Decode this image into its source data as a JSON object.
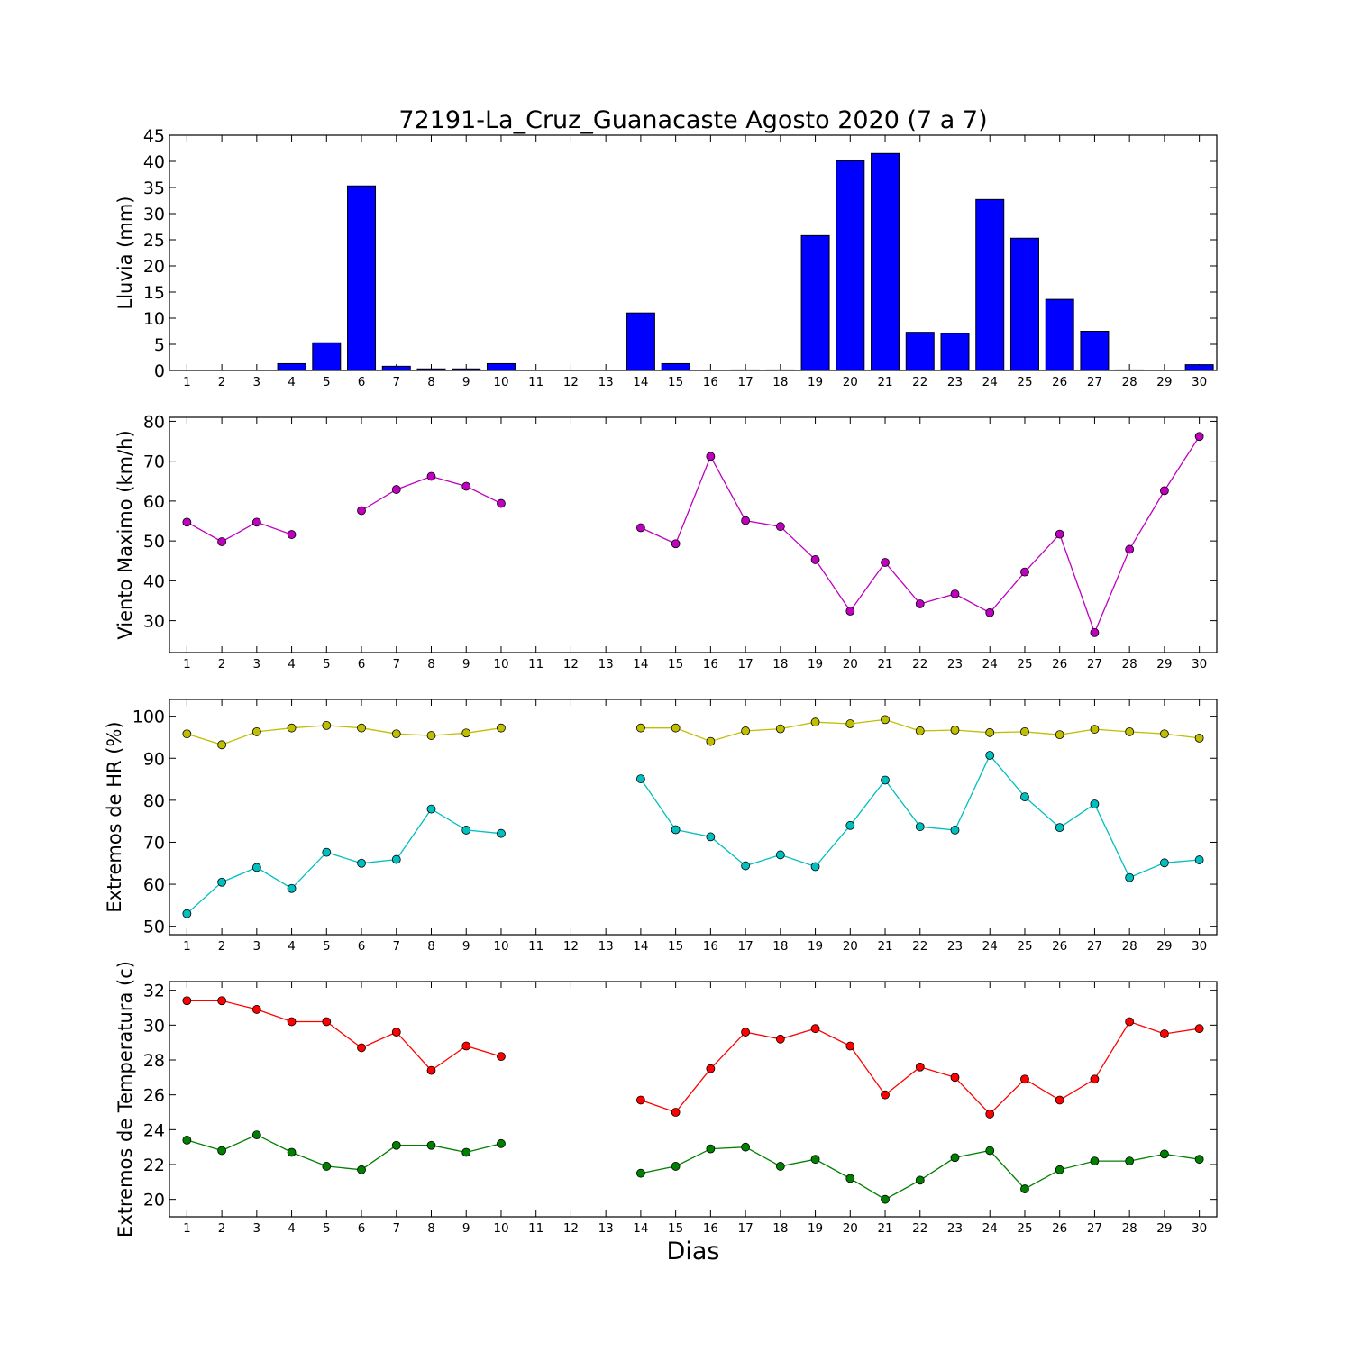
{
  "figure": {
    "title": "72191-La_Cruz_Guanacaste Agosto 2020  (7 a 7)",
    "xlabel": "Dias"
  },
  "chart_data": [
    {
      "type": "bar",
      "ylabel": "Lluvia (mm)",
      "ylim": [
        0,
        45
      ],
      "yticks": [
        0,
        5,
        10,
        15,
        20,
        25,
        30,
        35,
        40,
        45
      ],
      "x": [
        1,
        2,
        3,
        4,
        5,
        6,
        7,
        8,
        9,
        10,
        11,
        12,
        13,
        14,
        15,
        16,
        17,
        18,
        19,
        20,
        21,
        22,
        23,
        24,
        25,
        26,
        27,
        28,
        29,
        30
      ],
      "series": [
        {
          "color": "#0000ff",
          "values": [
            0,
            0,
            0,
            1.3,
            5.3,
            35.3,
            0.8,
            0.3,
            0.3,
            1.3,
            0,
            0,
            0,
            11.0,
            1.3,
            0,
            0.1,
            0.1,
            25.8,
            40.1,
            41.5,
            7.3,
            7.1,
            32.7,
            25.3,
            13.6,
            7.5,
            0.1,
            0,
            1.1
          ]
        }
      ]
    },
    {
      "type": "line",
      "ylabel": "Viento Maximo (km/h)",
      "ylim": [
        22,
        81
      ],
      "yticks": [
        30,
        40,
        50,
        60,
        70,
        80
      ],
      "x": [
        1,
        2,
        3,
        4,
        5,
        6,
        7,
        8,
        9,
        10,
        11,
        12,
        13,
        14,
        15,
        16,
        17,
        18,
        19,
        20,
        21,
        22,
        23,
        24,
        25,
        26,
        27,
        28,
        29,
        30
      ],
      "series": [
        {
          "color": "#bf00bf",
          "values": [
            54.7,
            49.8,
            54.7,
            51.6,
            null,
            57.6,
            62.9,
            66.2,
            63.7,
            59.4,
            null,
            null,
            null,
            53.3,
            49.3,
            71.2,
            55.1,
            53.6,
            45.3,
            32.4,
            44.6,
            34.2,
            36.7,
            32.0,
            42.2,
            51.7,
            27.0,
            47.9,
            62.6,
            76.2
          ]
        }
      ]
    },
    {
      "type": "line",
      "ylabel": "Extremos de HR (%)",
      "ylim": [
        48,
        104
      ],
      "yticks": [
        50,
        60,
        70,
        80,
        90,
        100
      ],
      "x": [
        1,
        2,
        3,
        4,
        5,
        6,
        7,
        8,
        9,
        10,
        11,
        12,
        13,
        14,
        15,
        16,
        17,
        18,
        19,
        20,
        21,
        22,
        23,
        24,
        25,
        26,
        27,
        28,
        29,
        30
      ],
      "series": [
        {
          "color": "#bfbf00",
          "values": [
            95.8,
            93.2,
            96.3,
            97.2,
            97.8,
            97.2,
            95.8,
            95.4,
            96.0,
            97.2,
            null,
            null,
            null,
            97.2,
            97.2,
            94.0,
            96.5,
            97.0,
            98.6,
            98.2,
            99.2,
            96.5,
            96.7,
            96.1,
            96.3,
            95.6,
            96.9,
            96.3,
            95.8,
            94.8
          ]
        },
        {
          "color": "#00bfbf",
          "values": [
            53.0,
            60.5,
            64.0,
            59.0,
            67.6,
            65.0,
            65.9,
            77.9,
            72.9,
            72.1,
            null,
            null,
            null,
            85.1,
            73.0,
            71.3,
            64.4,
            67.0,
            64.2,
            74.0,
            84.8,
            73.7,
            72.9,
            90.7,
            80.8,
            73.5,
            79.1,
            61.6,
            65.1,
            65.8
          ]
        }
      ]
    },
    {
      "type": "line",
      "ylabel": "Extremos de Temperatura (c)",
      "ylim": [
        19,
        32.5
      ],
      "yticks": [
        20,
        22,
        24,
        26,
        28,
        30,
        32
      ],
      "x": [
        1,
        2,
        3,
        4,
        5,
        6,
        7,
        8,
        9,
        10,
        11,
        12,
        13,
        14,
        15,
        16,
        17,
        18,
        19,
        20,
        21,
        22,
        23,
        24,
        25,
        26,
        27,
        28,
        29,
        30
      ],
      "series": [
        {
          "color": "#ff0000",
          "values": [
            31.4,
            31.4,
            30.9,
            30.2,
            30.2,
            28.7,
            29.6,
            27.4,
            28.8,
            28.2,
            null,
            null,
            null,
            25.7,
            25.0,
            27.5,
            29.6,
            29.2,
            29.8,
            28.8,
            26.0,
            27.6,
            27.0,
            24.9,
            26.9,
            25.7,
            26.9,
            30.2,
            29.5,
            29.8
          ]
        },
        {
          "color": "#008000",
          "values": [
            23.4,
            22.8,
            23.7,
            22.7,
            21.9,
            21.7,
            23.1,
            23.1,
            22.7,
            23.2,
            null,
            null,
            null,
            21.5,
            21.9,
            22.9,
            23.0,
            21.9,
            22.3,
            21.2,
            20.0,
            21.1,
            22.4,
            22.8,
            20.6,
            21.7,
            22.2,
            22.2,
            22.6,
            22.3
          ]
        }
      ]
    }
  ]
}
